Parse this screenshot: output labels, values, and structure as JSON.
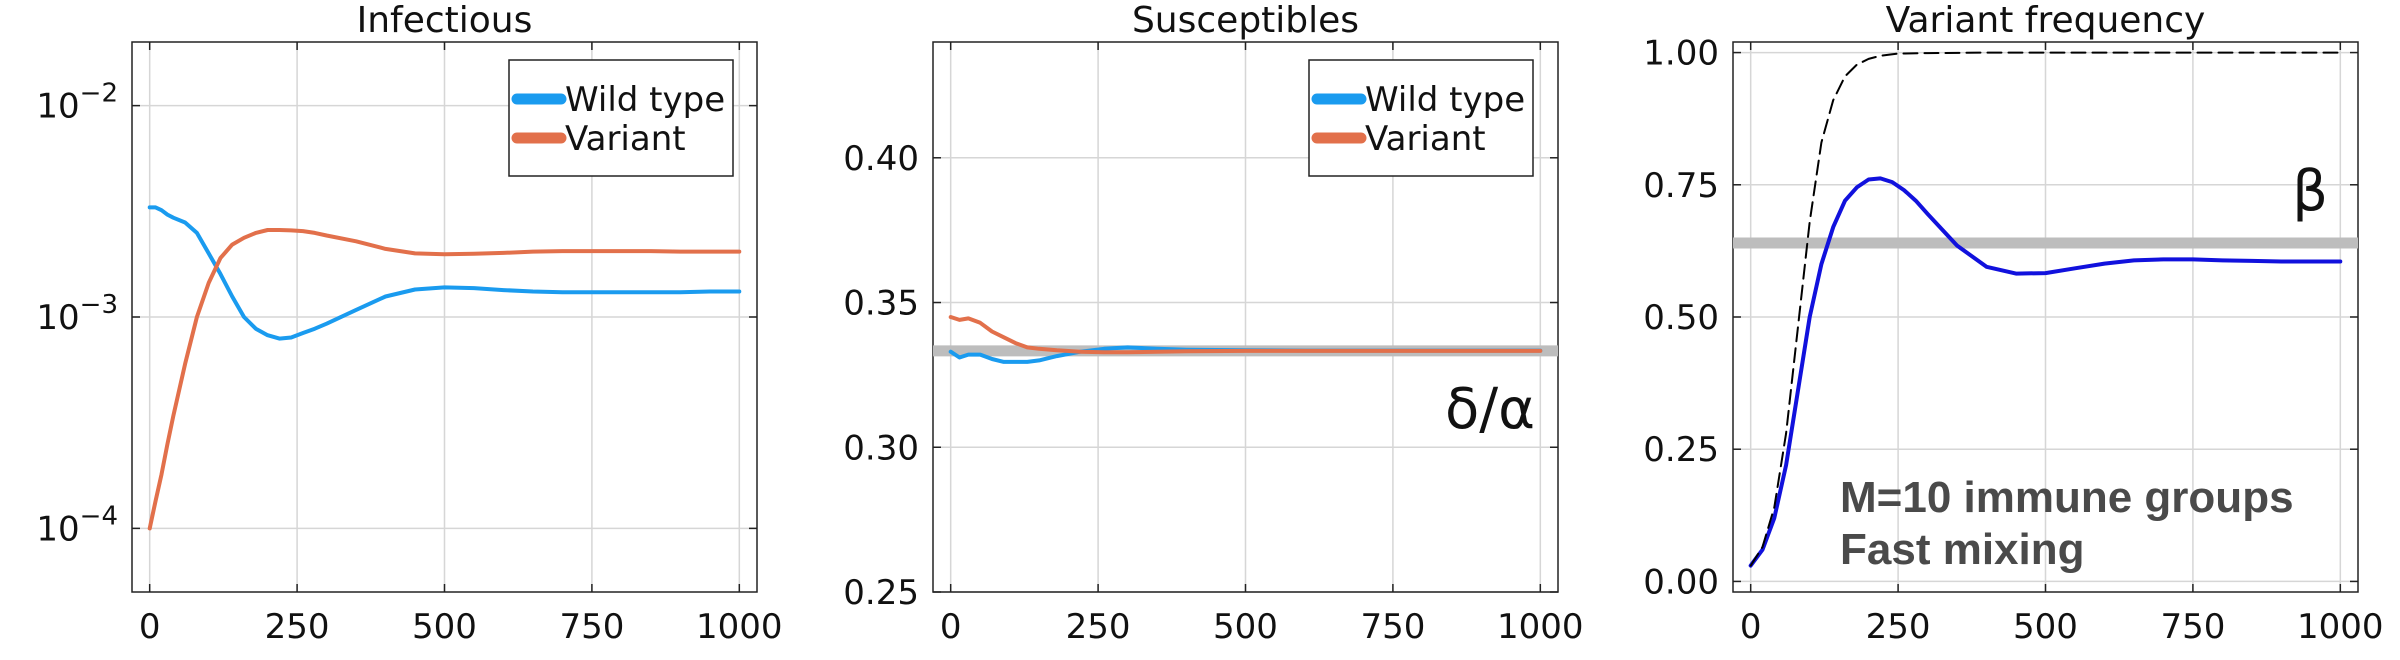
{
  "chart_data": [
    {
      "type": "line",
      "title": "Infectious",
      "xlabel": "",
      "ylabel": "",
      "yscale": "log",
      "xlim": [
        -30,
        1030
      ],
      "ylim": [
        5e-05,
        0.02
      ],
      "x_ticks": [
        0,
        250,
        500,
        750,
        1000
      ],
      "y_ticks": [
        0.0001,
        0.001,
        0.01
      ],
      "y_tick_labels": [
        {
          "base": "10",
          "exp": "−4"
        },
        {
          "base": "10",
          "exp": "−3"
        },
        {
          "base": "10",
          "exp": "−2"
        }
      ],
      "grid": true,
      "legend_position": "top-right",
      "series": [
        {
          "name": "Wild type",
          "color": "#1a9bef",
          "x": [
            0,
            10,
            20,
            30,
            40,
            60,
            80,
            100,
            120,
            140,
            160,
            180,
            200,
            220,
            240,
            260,
            280,
            300,
            350,
            400,
            450,
            500,
            550,
            600,
            650,
            700,
            750,
            800,
            850,
            900,
            950,
            1000
          ],
          "y": [
            0.0033,
            0.0033,
            0.0032,
            0.00305,
            0.00295,
            0.0028,
            0.0025,
            0.002,
            0.0016,
            0.00125,
            0.001,
            0.00088,
            0.00082,
            0.00079,
            0.0008,
            0.00084,
            0.00088,
            0.00093,
            0.00108,
            0.00125,
            0.00135,
            0.00138,
            0.00137,
            0.00134,
            0.00132,
            0.00131,
            0.00131,
            0.00131,
            0.00131,
            0.00131,
            0.00132,
            0.00132
          ]
        },
        {
          "name": "Variant",
          "color": "#e2704b",
          "x": [
            0,
            10,
            20,
            30,
            40,
            60,
            80,
            100,
            120,
            140,
            160,
            180,
            200,
            220,
            240,
            260,
            280,
            300,
            350,
            400,
            450,
            500,
            550,
            600,
            650,
            700,
            750,
            800,
            850,
            900,
            950,
            1000
          ],
          "y": [
            0.0001,
            0.000135,
            0.00018,
            0.00025,
            0.00034,
            0.0006,
            0.001,
            0.00145,
            0.0019,
            0.0022,
            0.00237,
            0.0025,
            0.00258,
            0.00258,
            0.00257,
            0.00255,
            0.0025,
            0.00243,
            0.00228,
            0.0021,
            0.002,
            0.00198,
            0.00199,
            0.00201,
            0.00204,
            0.00205,
            0.00205,
            0.00205,
            0.00205,
            0.00204,
            0.00204,
            0.00204
          ]
        }
      ]
    },
    {
      "type": "line",
      "title": "Susceptibles",
      "xlabel": "",
      "ylabel": "",
      "xlim": [
        -30,
        1030
      ],
      "ylim": [
        0.25,
        0.44
      ],
      "x_ticks": [
        0,
        250,
        500,
        750,
        1000
      ],
      "y_ticks": [
        0.25,
        0.3,
        0.35,
        0.4
      ],
      "y_tick_labels": [
        "0.25",
        "0.30",
        "0.35",
        "0.40"
      ],
      "grid": true,
      "legend_position": "top-right",
      "reference_line": {
        "y": 0.3333,
        "color": "#bdbdbd",
        "label": "δ/α"
      },
      "series": [
        {
          "name": "Wild type",
          "color": "#1a9bef",
          "x": [
            0,
            15,
            30,
            50,
            70,
            90,
            110,
            130,
            150,
            180,
            220,
            260,
            300,
            350,
            400,
            500,
            600,
            700,
            800,
            900,
            1000
          ],
          "y": [
            0.333,
            0.331,
            0.332,
            0.332,
            0.3305,
            0.3295,
            0.3295,
            0.3295,
            0.33,
            0.3315,
            0.333,
            0.334,
            0.3345,
            0.334,
            0.3337,
            0.3335,
            0.3334,
            0.3334,
            0.3334,
            0.3334,
            0.3334
          ]
        },
        {
          "name": "Variant",
          "color": "#e2704b",
          "x": [
            0,
            15,
            30,
            50,
            70,
            90,
            110,
            130,
            150,
            180,
            220,
            260,
            300,
            350,
            400,
            500,
            600,
            700,
            800,
            900,
            1000
          ],
          "y": [
            0.345,
            0.344,
            0.3445,
            0.343,
            0.34,
            0.338,
            0.336,
            0.3345,
            0.334,
            0.3335,
            0.333,
            0.3328,
            0.3328,
            0.333,
            0.3332,
            0.3333,
            0.3333,
            0.3333,
            0.3333,
            0.3333,
            0.3333
          ]
        }
      ]
    },
    {
      "type": "line",
      "title": "Variant frequency",
      "xlabel": "",
      "ylabel": "",
      "xlim": [
        -30,
        1030
      ],
      "ylim": [
        -0.02,
        1.02
      ],
      "x_ticks": [
        0,
        250,
        500,
        750,
        1000
      ],
      "y_ticks": [
        0.0,
        0.25,
        0.5,
        0.75,
        1.0
      ],
      "y_tick_labels": [
        "0.00",
        "0.25",
        "0.50",
        "0.75",
        "1.00"
      ],
      "grid": true,
      "reference_line": {
        "y": 0.64,
        "color": "#bdbdbd",
        "label": "β"
      },
      "annotations": [
        "M=10 immune groups",
        "Fast mixing"
      ],
      "series": [
        {
          "color": "#1111dd",
          "style": "solid",
          "x": [
            0,
            20,
            40,
            60,
            80,
            100,
            120,
            140,
            160,
            180,
            200,
            220,
            240,
            260,
            280,
            300,
            350,
            400,
            450,
            500,
            550,
            600,
            650,
            700,
            750,
            800,
            850,
            900,
            950,
            1000
          ],
          "y": [
            0.03,
            0.06,
            0.12,
            0.22,
            0.36,
            0.5,
            0.6,
            0.67,
            0.72,
            0.745,
            0.76,
            0.762,
            0.755,
            0.74,
            0.72,
            0.695,
            0.635,
            0.595,
            0.582,
            0.583,
            0.592,
            0.601,
            0.607,
            0.609,
            0.609,
            0.607,
            0.606,
            0.605,
            0.605,
            0.605
          ]
        },
        {
          "color": "#000000",
          "style": "dashed",
          "x": [
            0,
            20,
            40,
            60,
            80,
            100,
            120,
            140,
            160,
            180,
            200,
            220,
            250,
            300,
            400,
            500,
            600,
            700,
            800,
            900,
            1000
          ],
          "y": [
            0.03,
            0.065,
            0.14,
            0.28,
            0.48,
            0.68,
            0.83,
            0.91,
            0.955,
            0.977,
            0.988,
            0.994,
            0.998,
            0.999,
            1.0,
            1.0,
            1.0,
            1.0,
            1.0,
            1.0,
            1.0
          ]
        }
      ]
    }
  ]
}
